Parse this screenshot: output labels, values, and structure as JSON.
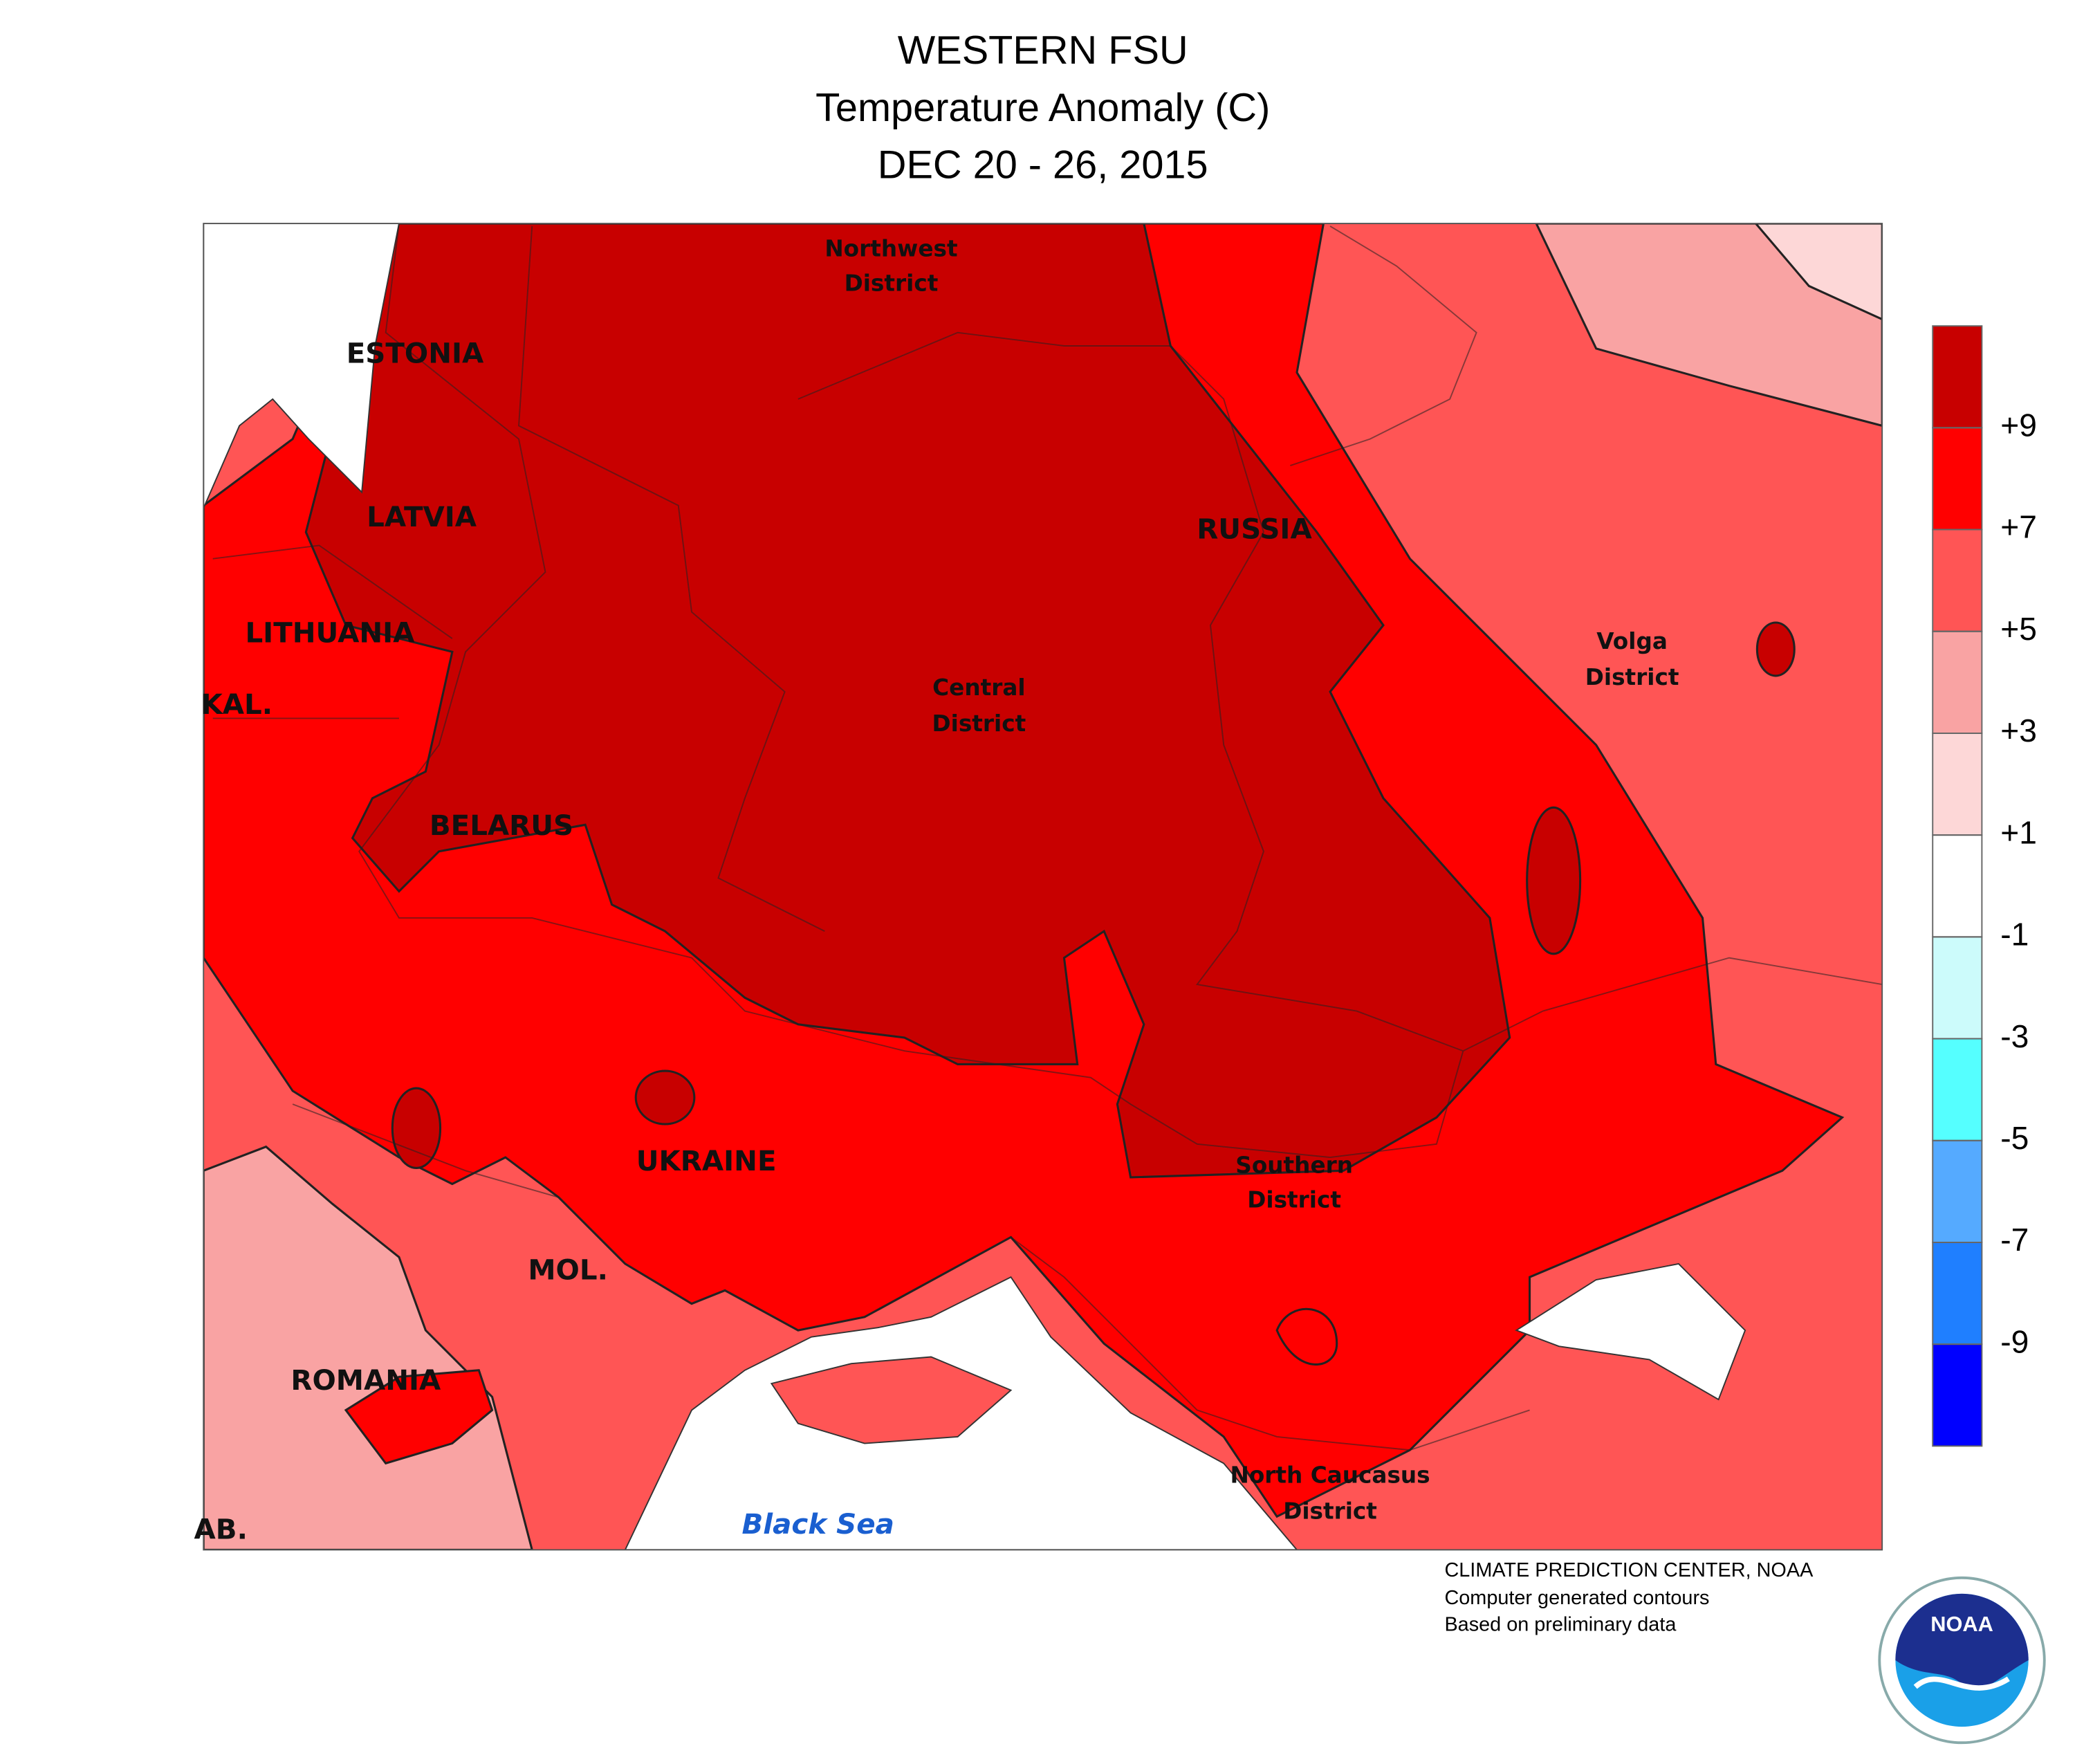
{
  "header": {
    "title": [
      "WESTERN FSU",
      "Temperature Anomaly (C)",
      "DEC 20 - 26, 2015"
    ]
  },
  "map": {
    "labels": {
      "northwest": [
        "Northwest",
        "District"
      ],
      "estonia": "ESTONIA",
      "latvia": "LATVIA",
      "lithuania": "LITHUANIA",
      "kal": "KAL.",
      "belarus": "BELARUS",
      "russia": "RUSSIA",
      "central": [
        "Central",
        "District"
      ],
      "volga": [
        "Volga",
        "District"
      ],
      "ukraine": "UKRAINE",
      "southern": [
        "Southern",
        "District"
      ],
      "mol": "MOL.",
      "romania": "ROMANIA",
      "north_caucasus": [
        "North Caucasus",
        "District"
      ],
      "black_sea": "Black Sea",
      "ab": "AB."
    }
  },
  "legend": {
    "lim": [
      -11,
      11
    ],
    "colors": [
      "#c80000",
      "#ff0000",
      "#ff5555",
      "#f9a3a3",
      "#fdd7d7",
      "#ffffff",
      "#ccfbfb",
      "#55ffff",
      "#55aaff",
      "#1f7fff",
      "#0000ff"
    ],
    "ticks": [
      {
        "value": 9,
        "label": "+9"
      },
      {
        "value": 7,
        "label": "+7"
      },
      {
        "value": 5,
        "label": "+5"
      },
      {
        "value": 3,
        "label": "+3"
      },
      {
        "value": 1,
        "label": "+1"
      },
      -1,
      -3,
      -5,
      -7,
      -9
    ]
  },
  "credits": [
    "CLIMATE PREDICTION CENTER, NOAA",
    "Computer generated contours",
    "Based on preliminary data"
  ],
  "logo": {
    "text": "NOAA"
  }
}
